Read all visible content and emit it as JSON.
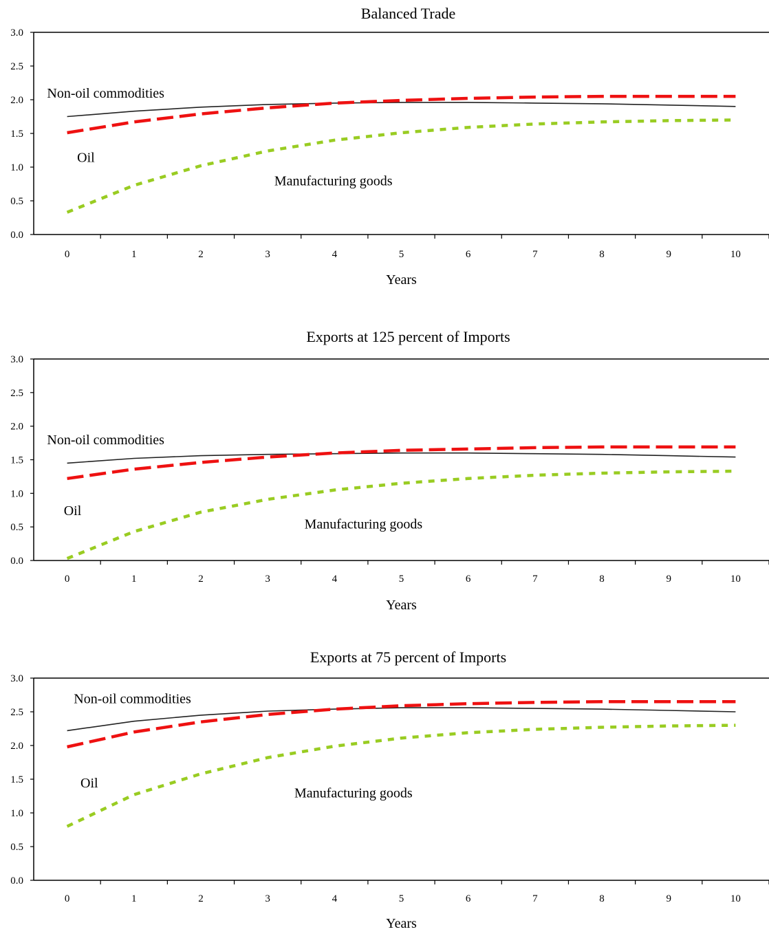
{
  "colors": {
    "non_oil": "#222222",
    "oil": "#ee1111",
    "manufacturing": "#99cc22",
    "axis": "#000000"
  },
  "chart_data": [
    {
      "type": "line",
      "title": "Balanced Trade",
      "xlabel": "Years",
      "ylabel": "",
      "x": [
        0,
        1,
        2,
        3,
        4,
        5,
        6,
        7,
        8,
        9,
        10
      ],
      "xlim": [
        -0.5,
        10.5
      ],
      "ylim": [
        0,
        3
      ],
      "yticks": [
        "0.0",
        "0.5",
        "1.0",
        "1.5",
        "2.0",
        "2.5",
        "3.0"
      ],
      "xticks": [
        "0",
        "1",
        "2",
        "3",
        "4",
        "5",
        "6",
        "7",
        "8",
        "9",
        "10"
      ],
      "grid": false,
      "legend": "inline labels",
      "series": [
        {
          "key": "non_oil",
          "values": [
            1.75,
            1.83,
            1.89,
            1.93,
            1.95,
            1.96,
            1.96,
            1.95,
            1.94,
            1.92,
            1.9
          ]
        },
        {
          "key": "oil",
          "values": [
            1.51,
            1.67,
            1.79,
            1.88,
            1.95,
            1.99,
            2.02,
            2.04,
            2.05,
            2.05,
            2.05
          ]
        },
        {
          "key": "manufacturing",
          "values": [
            0.33,
            0.73,
            1.02,
            1.24,
            1.4,
            1.51,
            1.59,
            1.64,
            1.67,
            1.69,
            1.7
          ]
        }
      ],
      "annotations": [
        {
          "text": "Non-oil commodities",
          "x": -0.3,
          "y": 2.1
        },
        {
          "text": "Oil",
          "x": 0.15,
          "y": 1.15
        },
        {
          "text": "Manufacturing goods",
          "x": 3.1,
          "y": 0.8
        }
      ]
    },
    {
      "type": "line",
      "title": "Exports at 125 percent of Imports",
      "xlabel": "Years",
      "ylabel": "",
      "x": [
        0,
        1,
        2,
        3,
        4,
        5,
        6,
        7,
        8,
        9,
        10
      ],
      "xlim": [
        -0.5,
        10.5
      ],
      "ylim": [
        0,
        3
      ],
      "yticks": [
        "0.0",
        "0.5",
        "1.0",
        "1.5",
        "2.0",
        "2.5",
        "3.0"
      ],
      "xticks": [
        "0",
        "1",
        "2",
        "3",
        "4",
        "5",
        "6",
        "7",
        "8",
        "9",
        "10"
      ],
      "grid": false,
      "legend": "inline labels",
      "series": [
        {
          "key": "non_oil",
          "values": [
            1.45,
            1.52,
            1.56,
            1.58,
            1.59,
            1.6,
            1.6,
            1.59,
            1.58,
            1.56,
            1.54
          ]
        },
        {
          "key": "oil",
          "values": [
            1.22,
            1.36,
            1.46,
            1.54,
            1.6,
            1.64,
            1.66,
            1.68,
            1.69,
            1.69,
            1.69
          ]
        },
        {
          "key": "manufacturing",
          "values": [
            0.03,
            0.43,
            0.72,
            0.91,
            1.05,
            1.15,
            1.22,
            1.27,
            1.3,
            1.32,
            1.33
          ]
        }
      ],
      "annotations": [
        {
          "text": "Non-oil commodities",
          "x": -0.3,
          "y": 1.8
        },
        {
          "text": "Oil",
          "x": -0.05,
          "y": 0.75
        },
        {
          "text": "Manufacturing goods",
          "x": 3.55,
          "y": 0.55
        }
      ]
    },
    {
      "type": "line",
      "title": "Exports at 75 percent of Imports",
      "xlabel": "Years",
      "ylabel": "",
      "x": [
        0,
        1,
        2,
        3,
        4,
        5,
        6,
        7,
        8,
        9,
        10
      ],
      "xlim": [
        -0.5,
        10.5
      ],
      "ylim": [
        0,
        3
      ],
      "yticks": [
        "0.0",
        "0.5",
        "1.0",
        "1.5",
        "2.0",
        "2.5",
        "3.0"
      ],
      "xticks": [
        "0",
        "1",
        "2",
        "3",
        "4",
        "5",
        "6",
        "7",
        "8",
        "9",
        "10"
      ],
      "grid": false,
      "legend": "inline labels",
      "series": [
        {
          "key": "non_oil",
          "values": [
            2.22,
            2.36,
            2.45,
            2.51,
            2.54,
            2.56,
            2.56,
            2.55,
            2.54,
            2.52,
            2.5
          ]
        },
        {
          "key": "oil",
          "values": [
            1.98,
            2.2,
            2.35,
            2.46,
            2.54,
            2.59,
            2.62,
            2.64,
            2.65,
            2.65,
            2.65
          ]
        },
        {
          "key": "manufacturing",
          "values": [
            0.8,
            1.27,
            1.58,
            1.82,
            1.99,
            2.11,
            2.19,
            2.24,
            2.27,
            2.29,
            2.3
          ]
        }
      ],
      "annotations": [
        {
          "text": "Non-oil commodities",
          "x": 0.1,
          "y": 2.7
        },
        {
          "text": "Oil",
          "x": 0.2,
          "y": 1.45
        },
        {
          "text": "Manufacturing goods",
          "x": 3.4,
          "y": 1.3
        }
      ]
    }
  ]
}
